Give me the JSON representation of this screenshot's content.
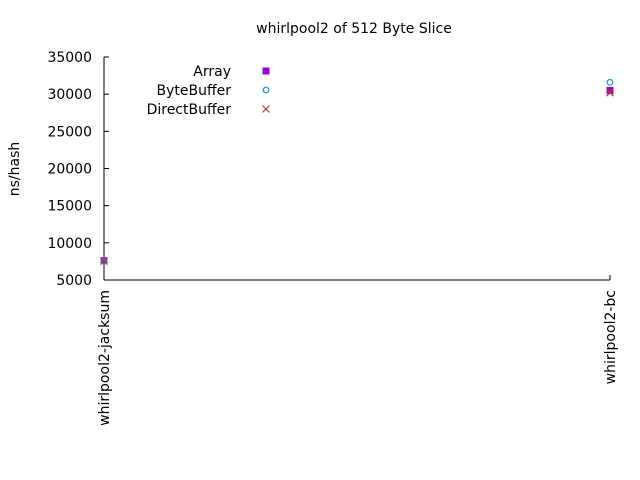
{
  "chart_data": {
    "type": "scatter",
    "title": "whirlpool2 of 512 Byte Slice",
    "xlabel": "",
    "ylabel": "ns/hash",
    "categories": [
      "whirlpool2-jacksum",
      "whirlpool2-bc"
    ],
    "ylim": [
      5000,
      35000
    ],
    "yticks": [
      5000,
      10000,
      15000,
      20000,
      25000,
      30000,
      35000
    ],
    "grid": false,
    "legend_position": "top-left",
    "series": [
      {
        "name": "Array",
        "marker": "filled-square",
        "color": "#9400d3",
        "values": [
          7600,
          30500
        ]
      },
      {
        "name": "ByteBuffer",
        "marker": "open-circle",
        "color": "#009ed7",
        "values": [
          7550,
          31600
        ]
      },
      {
        "name": "DirectBuffer",
        "marker": "cross",
        "color": "#c0392b",
        "values": [
          7550,
          30200
        ]
      }
    ]
  }
}
